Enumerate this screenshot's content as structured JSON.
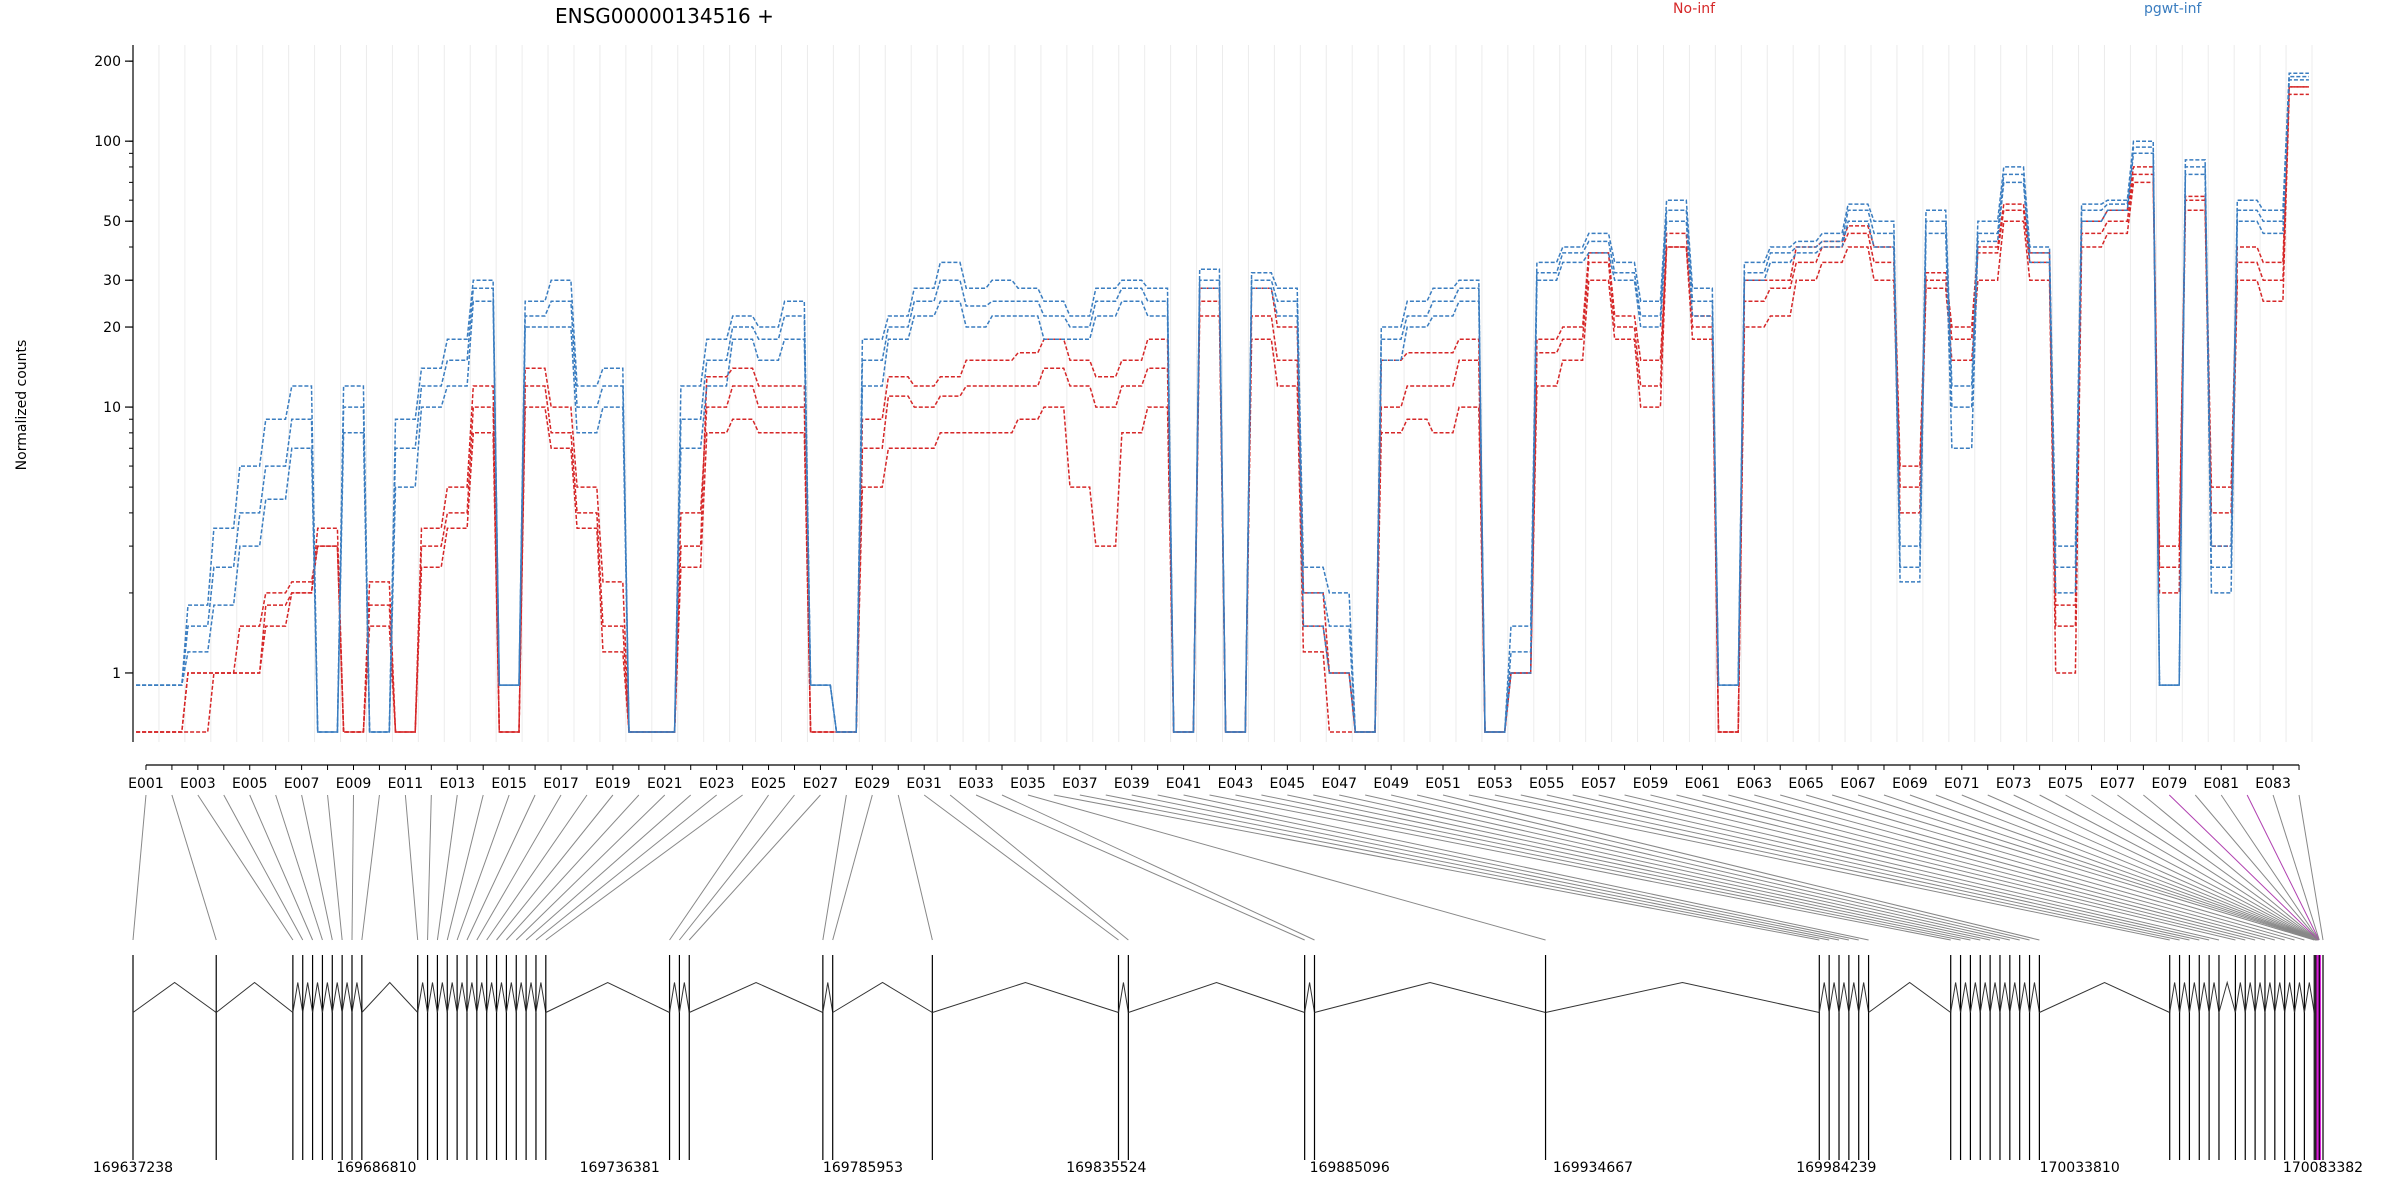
{
  "chart_data": {
    "type": "line",
    "title": "ENSG00000134516 +",
    "ylabel": "Normalized counts",
    "xlabel": "",
    "yscale": "log",
    "ylim": [
      0.55,
      230
    ],
    "yticks": [
      1,
      10,
      20,
      30,
      50,
      100,
      200
    ],
    "grid": "vertical",
    "legend": [
      {
        "name": "No-inf",
        "color": "#d62728"
      },
      {
        "name": "pgwt-inf",
        "color": "#3a7dc0"
      }
    ],
    "groups": {
      "No-inf": {
        "color": "#d62728"
      },
      "pgwt-inf": {
        "color": "#3a7dc0"
      }
    },
    "exon_count": 84,
    "x_tick_labels": [
      "E001",
      "E003",
      "E005",
      "E007",
      "E009",
      "E011",
      "E013",
      "E015",
      "E017",
      "E019",
      "E021",
      "E023",
      "E025",
      "E027",
      "E029",
      "E031",
      "E033",
      "E035",
      "E037",
      "E039",
      "E041",
      "E043",
      "E045",
      "E047",
      "E049",
      "E051",
      "E053",
      "E055",
      "E057",
      "E059",
      "E061",
      "E063",
      "E065",
      "E067",
      "E069",
      "E071",
      "E073",
      "E075",
      "E077",
      "E079",
      "E081",
      "E083"
    ],
    "series_no_inf": [
      [
        0.6,
        0.6,
        0.6,
        1,
        1,
        1.8,
        2,
        3.5,
        0.6,
        2.2,
        0.6,
        3.5,
        5,
        12,
        0.6,
        14,
        10,
        5,
        2.2,
        0.6,
        0.6,
        3,
        13,
        14,
        12,
        12,
        0.6,
        0.6,
        9,
        13,
        12,
        13,
        15,
        15,
        16,
        18,
        15,
        13,
        15,
        18,
        0.6,
        28,
        0.6,
        28,
        20,
        2,
        1,
        0.6,
        15,
        16,
        16,
        18,
        0.6,
        1,
        18,
        20,
        38,
        22,
        15,
        40,
        22,
        0.6,
        30,
        30,
        40,
        42,
        48,
        40,
        6,
        32,
        20,
        40,
        58,
        38,
        1.8,
        50,
        55,
        80,
        3,
        62,
        5,
        40,
        35,
        160
      ],
      [
        0.6,
        0.6,
        1,
        1,
        1,
        1.5,
        2,
        3,
        0.6,
        1.8,
        0.6,
        3,
        4,
        10,
        0.6,
        12,
        8,
        4,
        1.5,
        0.6,
        0.6,
        4,
        10,
        12,
        10,
        10,
        0.6,
        0.6,
        7,
        11,
        10,
        11,
        12,
        12,
        12,
        14,
        12,
        10,
        12,
        14,
        0.6,
        25,
        0.6,
        22,
        15,
        1.5,
        1,
        0.6,
        10,
        12,
        12,
        15,
        0.6,
        1,
        16,
        18,
        35,
        20,
        12,
        45,
        20,
        0.6,
        25,
        28,
        35,
        40,
        45,
        35,
        5,
        30,
        18,
        38,
        55,
        35,
        1.5,
        45,
        50,
        75,
        2.5,
        60,
        4,
        35,
        30,
        160
      ],
      [
        0.6,
        0.6,
        1,
        1,
        1.5,
        2,
        2.2,
        3,
        0.6,
        1.5,
        0.6,
        2.5,
        3.5,
        8,
        0.6,
        10,
        7,
        3.5,
        1.2,
        0.6,
        0.6,
        2.5,
        8,
        9,
        8,
        8,
        0.6,
        0.6,
        5,
        7,
        7,
        8,
        8,
        8,
        9,
        10,
        5,
        3,
        8,
        10,
        0.6,
        22,
        0.6,
        18,
        12,
        1.2,
        0.6,
        0.6,
        8,
        9,
        8,
        10,
        0.6,
        1,
        12,
        15,
        30,
        18,
        10,
        40,
        18,
        0.6,
        20,
        22,
        30,
        35,
        40,
        30,
        4,
        28,
        15,
        30,
        50,
        30,
        1,
        40,
        45,
        70,
        2,
        55,
        3,
        30,
        25,
        150
      ]
    ],
    "series_pgwt_inf": [
      [
        0.9,
        0.9,
        1.8,
        3.5,
        6,
        9,
        12,
        0.6,
        12,
        0.6,
        9,
        14,
        18,
        30,
        0.9,
        25,
        30,
        12,
        14,
        0.6,
        0.6,
        12,
        18,
        22,
        20,
        25,
        0.9,
        0.6,
        18,
        22,
        28,
        35,
        28,
        30,
        28,
        25,
        22,
        28,
        30,
        28,
        0.6,
        33,
        0.6,
        32,
        28,
        2.5,
        2,
        0.6,
        20,
        25,
        28,
        30,
        0.6,
        1.5,
        35,
        40,
        45,
        35,
        25,
        60,
        28,
        0.9,
        35,
        40,
        42,
        45,
        58,
        50,
        3,
        55,
        12,
        50,
        80,
        40,
        3,
        58,
        60,
        100,
        0.9,
        85,
        3,
        60,
        55,
        180
      ],
      [
        0.9,
        0.9,
        1.5,
        2.5,
        4,
        6,
        9,
        0.6,
        10,
        0.6,
        7,
        12,
        15,
        28,
        0.9,
        22,
        25,
        10,
        12,
        0.6,
        0.6,
        9,
        15,
        20,
        18,
        22,
        0.9,
        0.6,
        15,
        20,
        25,
        30,
        24,
        25,
        25,
        22,
        20,
        25,
        28,
        25,
        0.6,
        30,
        0.6,
        30,
        25,
        2,
        1.5,
        0.6,
        18,
        22,
        25,
        28,
        0.6,
        1.2,
        32,
        38,
        42,
        32,
        22,
        55,
        25,
        0.9,
        32,
        38,
        40,
        42,
        55,
        45,
        2.5,
        50,
        10,
        45,
        75,
        38,
        2.5,
        55,
        58,
        95,
        0.9,
        80,
        2.5,
        55,
        50,
        175
      ],
      [
        0.9,
        0.9,
        1.2,
        1.8,
        3,
        4.5,
        7,
        0.6,
        8,
        0.6,
        5,
        10,
        12,
        25,
        0.9,
        20,
        20,
        8,
        10,
        0.6,
        0.6,
        7,
        12,
        18,
        15,
        18,
        0.9,
        0.6,
        12,
        18,
        22,
        25,
        20,
        22,
        22,
        18,
        18,
        22,
        25,
        22,
        0.6,
        28,
        0.6,
        28,
        22,
        1.5,
        1,
        0.6,
        15,
        20,
        22,
        25,
        0.6,
        1,
        30,
        35,
        38,
        30,
        20,
        50,
        22,
        0.9,
        30,
        35,
        38,
        40,
        50,
        40,
        2.2,
        45,
        7,
        42,
        70,
        35,
        2,
        50,
        55,
        90,
        0.9,
        75,
        2,
        50,
        45,
        170
      ]
    ],
    "genome_labels": [
      "169637238",
      "169686810",
      "169736381",
      "169785953",
      "169835524",
      "169885096",
      "169934667",
      "169984239",
      "170033810",
      "170083382"
    ]
  }
}
